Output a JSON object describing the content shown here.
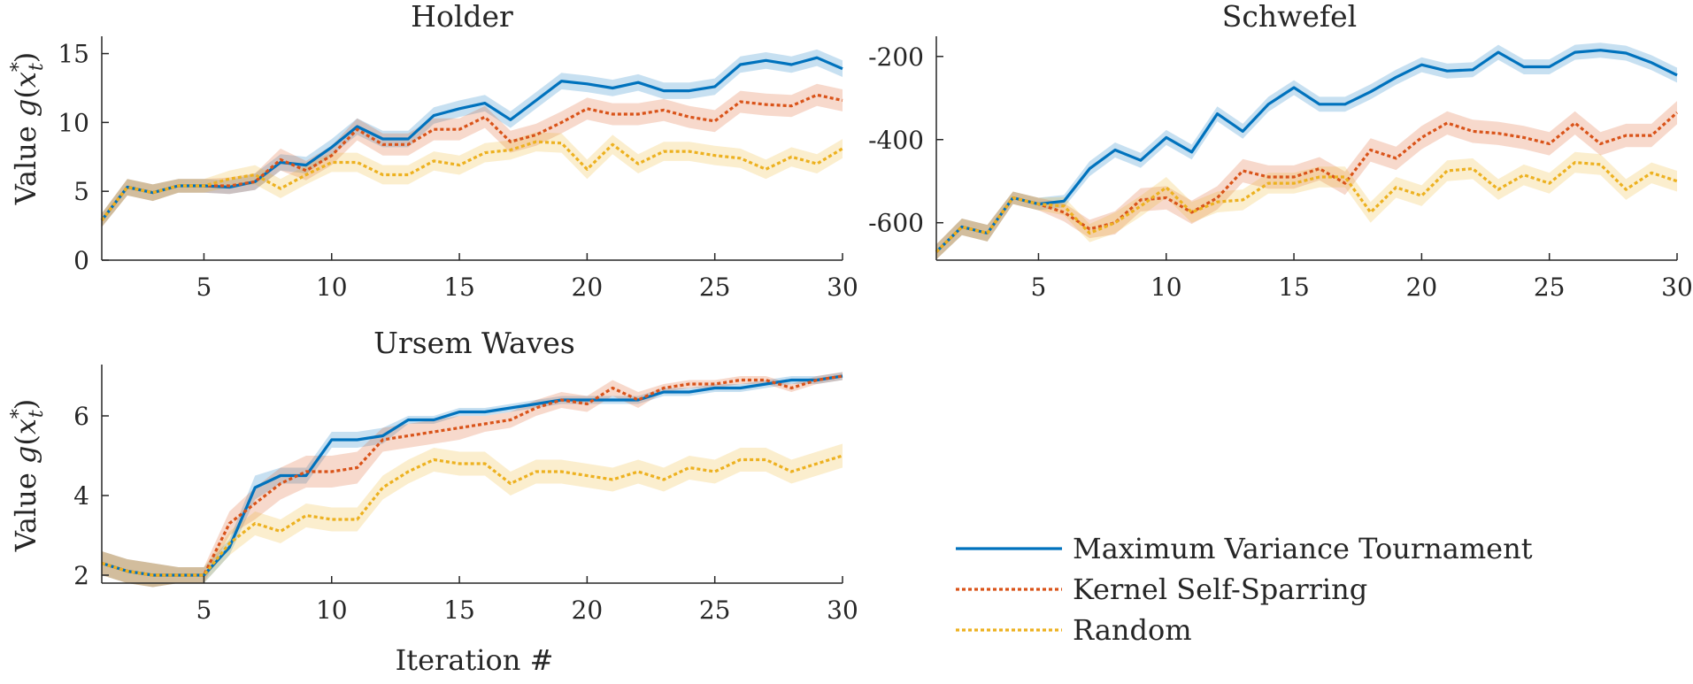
{
  "chart_data": [
    {
      "type": "line",
      "panel": "holder",
      "title": "Holder",
      "xlabel": "",
      "ylabel": "Value g(x*t)",
      "xlim": [
        1,
        30
      ],
      "ylim": [
        0,
        16
      ],
      "x_ticks": [
        5,
        10,
        15,
        20,
        25,
        30
      ],
      "y_ticks": [
        0,
        5,
        10,
        15
      ],
      "x_tick_labels": [
        "5",
        "10",
        "15",
        "20",
        "25",
        "30"
      ],
      "y_tick_labels": [
        "0",
        "5",
        "10",
        "15"
      ],
      "series": [
        {
          "name": "Maximum Variance Tournament",
          "values": [
            2.9,
            5.3,
            4.9,
            5.4,
            5.4,
            5.3,
            5.7,
            7.1,
            6.9,
            8.2,
            9.7,
            8.8,
            8.8,
            10.5,
            11.0,
            11.4,
            10.2,
            11.6,
            13.0,
            12.8,
            12.5,
            12.9,
            12.3,
            12.3,
            12.6,
            14.2,
            14.5,
            14.2,
            14.7,
            13.9
          ],
          "band": [
            0.5,
            0.6,
            0.6,
            0.5,
            0.5,
            0.5,
            0.6,
            0.6,
            0.6,
            0.6,
            0.6,
            0.6,
            0.6,
            0.6,
            0.6,
            0.6,
            0.6,
            0.6,
            0.6,
            0.6,
            0.6,
            0.6,
            0.6,
            0.6,
            0.6,
            0.6,
            0.6,
            0.6,
            0.6,
            0.6
          ]
        },
        {
          "name": "Kernel Self-Sparring",
          "values": [
            2.9,
            5.3,
            4.9,
            5.4,
            5.4,
            5.4,
            5.7,
            7.3,
            6.5,
            7.6,
            9.5,
            8.4,
            8.4,
            9.5,
            9.5,
            10.4,
            8.6,
            9.1,
            10.0,
            11.0,
            10.6,
            10.6,
            10.9,
            10.4,
            10.1,
            11.5,
            11.3,
            11.2,
            12.0,
            11.6
          ],
          "band": [
            0.5,
            0.6,
            0.6,
            0.5,
            0.5,
            0.6,
            0.6,
            0.8,
            0.7,
            0.7,
            0.8,
            0.8,
            0.8,
            0.8,
            0.8,
            0.8,
            0.8,
            0.8,
            0.8,
            0.8,
            0.8,
            0.8,
            0.8,
            0.8,
            0.8,
            0.8,
            0.8,
            0.8,
            0.8,
            0.8
          ]
        },
        {
          "name": "Random",
          "values": [
            2.9,
            5.3,
            4.9,
            5.4,
            5.4,
            5.9,
            6.2,
            5.2,
            6.2,
            7.1,
            7.1,
            6.2,
            6.2,
            7.2,
            6.9,
            7.8,
            8.0,
            8.6,
            8.5,
            6.6,
            8.4,
            7.0,
            7.9,
            7.9,
            7.6,
            7.4,
            6.6,
            7.5,
            7.0,
            8.1
          ],
          "band": [
            0.5,
            0.6,
            0.6,
            0.5,
            0.5,
            0.6,
            0.7,
            0.7,
            0.7,
            0.7,
            0.7,
            0.7,
            0.7,
            0.7,
            0.7,
            0.7,
            0.7,
            0.7,
            0.7,
            0.7,
            0.7,
            0.7,
            0.7,
            0.7,
            0.7,
            0.7,
            0.7,
            0.7,
            0.7,
            0.7
          ]
        }
      ]
    },
    {
      "type": "line",
      "panel": "schwefel",
      "title": "Schwefel",
      "xlabel": "",
      "ylabel": "",
      "xlim": [
        1,
        30
      ],
      "ylim": [
        -690,
        -160
      ],
      "x_ticks": [
        5,
        10,
        15,
        20,
        25,
        30
      ],
      "y_ticks": [
        -600,
        -400,
        -200
      ],
      "x_tick_labels": [
        "5",
        "10",
        "15",
        "20",
        "25",
        "30"
      ],
      "y_tick_labels": [
        "-600",
        "-400",
        "-200"
      ],
      "series": [
        {
          "name": "Maximum Variance Tournament",
          "values": [
            -670,
            -610,
            -625,
            -540,
            -555,
            -548,
            -470,
            -425,
            -450,
            -395,
            -430,
            -338,
            -380,
            -315,
            -275,
            -315,
            -315,
            -285,
            -250,
            -220,
            -235,
            -232,
            -190,
            -225,
            -225,
            -190,
            -185,
            -192,
            -215,
            -245
          ],
          "band": [
            18,
            20,
            20,
            15,
            15,
            15,
            18,
            18,
            18,
            18,
            18,
            18,
            18,
            18,
            18,
            18,
            18,
            18,
            18,
            18,
            18,
            18,
            18,
            18,
            18,
            18,
            18,
            18,
            18,
            18
          ]
        },
        {
          "name": "Kernel Self-Sparring",
          "values": [
            -670,
            -610,
            -625,
            -540,
            -555,
            -575,
            -615,
            -600,
            -545,
            -540,
            -575,
            -540,
            -475,
            -490,
            -490,
            -470,
            -505,
            -425,
            -445,
            -395,
            -360,
            -380,
            -385,
            -395,
            -410,
            -360,
            -410,
            -390,
            -390,
            -335
          ],
          "band": [
            18,
            20,
            20,
            15,
            15,
            22,
            22,
            28,
            28,
            28,
            28,
            28,
            28,
            28,
            28,
            28,
            28,
            28,
            28,
            28,
            28,
            28,
            28,
            28,
            28,
            28,
            28,
            28,
            28,
            28
          ]
        },
        {
          "name": "Random",
          "values": [
            -670,
            -610,
            -625,
            -540,
            -555,
            -560,
            -625,
            -600,
            -560,
            -515,
            -575,
            -550,
            -545,
            -505,
            -505,
            -490,
            -490,
            -575,
            -515,
            -535,
            -475,
            -470,
            -520,
            -485,
            -505,
            -455,
            -460,
            -520,
            -480,
            -500
          ],
          "band": [
            18,
            20,
            20,
            15,
            15,
            22,
            22,
            25,
            25,
            25,
            25,
            25,
            25,
            25,
            25,
            25,
            25,
            25,
            25,
            25,
            25,
            25,
            25,
            25,
            25,
            25,
            25,
            25,
            25,
            25
          ]
        }
      ]
    },
    {
      "type": "line",
      "panel": "ursem",
      "title": "Ursem Waves",
      "xlabel": "Iteration #",
      "ylabel": "Value g(x*t)",
      "xlim": [
        1,
        30
      ],
      "ylim": [
        1.8,
        7.2
      ],
      "x_ticks": [
        5,
        10,
        15,
        20,
        25,
        30
      ],
      "y_ticks": [
        2,
        4,
        6
      ],
      "x_tick_labels": [
        "5",
        "10",
        "15",
        "20",
        "25",
        "30"
      ],
      "y_tick_labels": [
        "2",
        "4",
        "6"
      ],
      "series": [
        {
          "name": "Maximum Variance Tournament",
          "values": [
            2.3,
            2.1,
            2.0,
            2.0,
            2.0,
            2.7,
            4.2,
            4.5,
            4.5,
            5.4,
            5.4,
            5.5,
            5.9,
            5.9,
            6.1,
            6.1,
            6.2,
            6.3,
            6.4,
            6.4,
            6.4,
            6.4,
            6.6,
            6.6,
            6.7,
            6.7,
            6.8,
            6.9,
            6.9,
            7.0
          ],
          "band": [
            0.3,
            0.3,
            0.3,
            0.2,
            0.2,
            0.2,
            0.3,
            0.2,
            0.2,
            0.2,
            0.2,
            0.2,
            0.1,
            0.1,
            0.1,
            0.1,
            0.1,
            0.1,
            0.1,
            0.1,
            0.1,
            0.1,
            0.1,
            0.1,
            0.1,
            0.1,
            0.1,
            0.1,
            0.1,
            0.1
          ]
        },
        {
          "name": "Kernel Self-Sparring",
          "values": [
            2.3,
            2.1,
            2.0,
            2.0,
            2.0,
            3.3,
            3.8,
            4.3,
            4.6,
            4.6,
            4.7,
            5.4,
            5.5,
            5.6,
            5.7,
            5.8,
            5.9,
            6.2,
            6.4,
            6.3,
            6.7,
            6.4,
            6.7,
            6.8,
            6.8,
            6.9,
            6.9,
            6.7,
            6.9,
            7.0
          ],
          "band": [
            0.3,
            0.3,
            0.3,
            0.2,
            0.2,
            0.3,
            0.4,
            0.4,
            0.4,
            0.4,
            0.4,
            0.3,
            0.3,
            0.3,
            0.3,
            0.2,
            0.2,
            0.2,
            0.2,
            0.2,
            0.2,
            0.2,
            0.1,
            0.1,
            0.1,
            0.1,
            0.1,
            0.1,
            0.1,
            0.1
          ]
        },
        {
          "name": "Random",
          "values": [
            2.3,
            2.1,
            2.0,
            2.0,
            2.0,
            2.8,
            3.3,
            3.1,
            3.5,
            3.4,
            3.4,
            4.2,
            4.6,
            4.9,
            4.8,
            4.8,
            4.3,
            4.6,
            4.6,
            4.5,
            4.4,
            4.6,
            4.4,
            4.7,
            4.6,
            4.9,
            4.9,
            4.6,
            4.8,
            5.0
          ],
          "band": [
            0.3,
            0.3,
            0.3,
            0.2,
            0.2,
            0.3,
            0.3,
            0.3,
            0.3,
            0.3,
            0.3,
            0.3,
            0.3,
            0.3,
            0.3,
            0.3,
            0.3,
            0.3,
            0.3,
            0.3,
            0.3,
            0.3,
            0.3,
            0.3,
            0.3,
            0.3,
            0.3,
            0.3,
            0.3,
            0.3
          ]
        }
      ]
    }
  ],
  "legend": {
    "position": "bottom-right",
    "entries": [
      {
        "label": "Maximum Variance Tournament",
        "color": "#0072bd",
        "dash": "solid"
      },
      {
        "label": "Kernel Self-Sparring",
        "color": "#d95319",
        "dash": "dotted"
      },
      {
        "label": "Random",
        "color": "#edb120",
        "dash": "dotted"
      }
    ]
  },
  "series_colors": [
    "#0072bd",
    "#d95319",
    "#edb120"
  ]
}
